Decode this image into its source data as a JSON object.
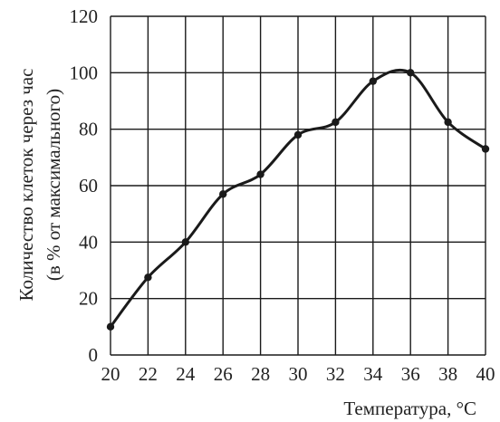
{
  "chart_data": {
    "type": "line",
    "title": "",
    "xlabel": "Температура, °C",
    "ylabel": [
      "Количество клеток через час",
      "(в % от максимального)"
    ],
    "x": [
      20,
      22,
      24,
      26,
      28,
      30,
      32,
      34,
      36,
      38,
      40
    ],
    "series": [
      {
        "values": [
          10,
          27.5,
          40,
          57,
          64,
          78,
          82.5,
          97,
          100,
          82.5,
          73
        ]
      }
    ],
    "xlim": [
      20,
      40
    ],
    "ylim": [
      0,
      120
    ],
    "xticks": [
      20,
      22,
      24,
      26,
      28,
      30,
      32,
      34,
      36,
      38,
      40
    ],
    "yticks": [
      0,
      20,
      40,
      60,
      80,
      100,
      120
    ],
    "grid": true,
    "legend": "none",
    "colors": {
      "line": "#1a1a1a",
      "grid": "#1a1a1a",
      "text": "#222222"
    }
  }
}
